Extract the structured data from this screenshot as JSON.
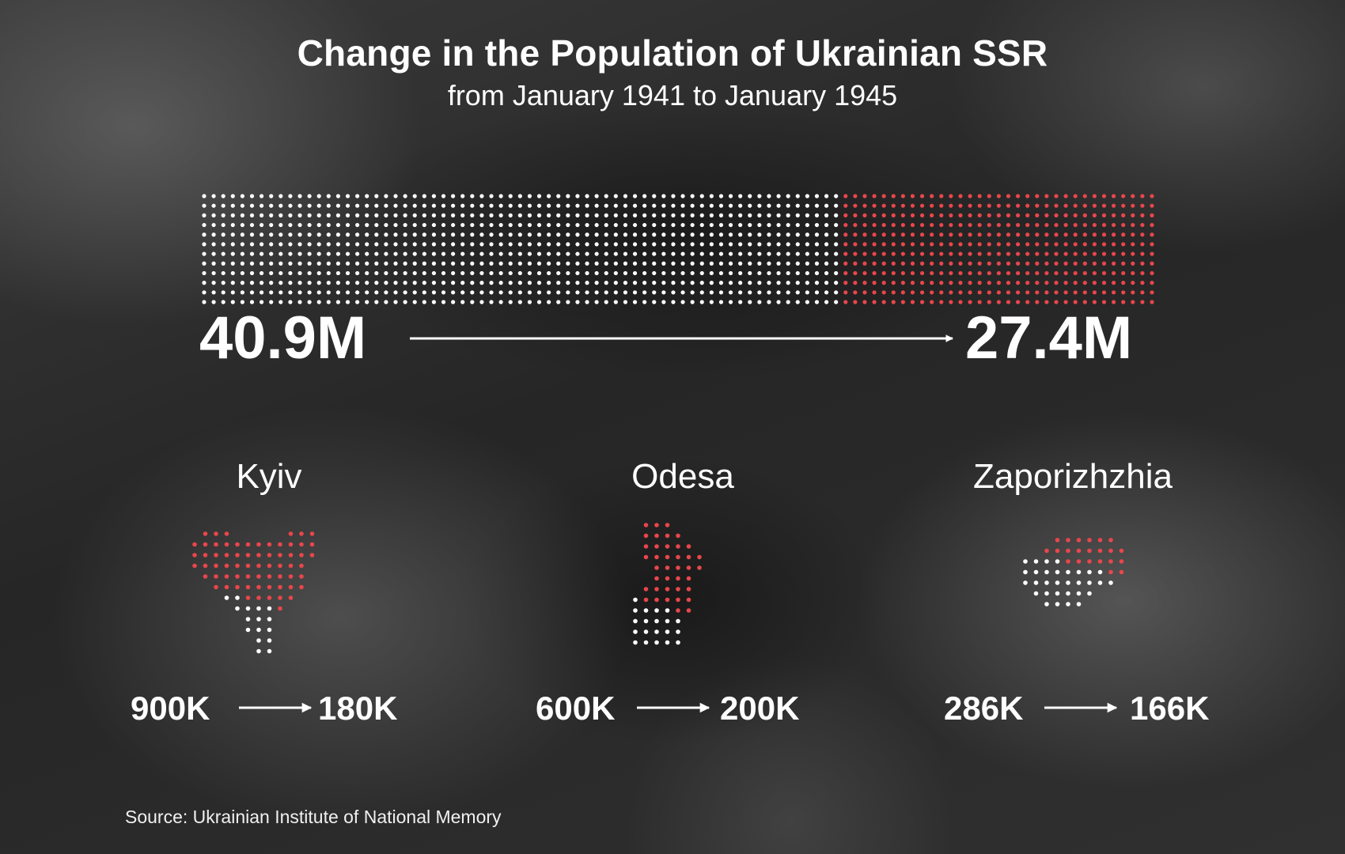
{
  "title": "Change in the Population of Ukrainian SSR",
  "subtitle": "from January 1941 to January 1945",
  "source": "Source: Ukrainian Institute of National Memory",
  "colors": {
    "remaining": "#ffffff",
    "lost": "#e8464b",
    "background": "#2a2a2a"
  },
  "chart_data": [
    {
      "type": "dot-matrix",
      "name": "Ukrainian SSR",
      "start_value": 40.9,
      "end_value": 27.4,
      "unit": "M",
      "start_label": "40.9M",
      "end_label": "27.4M"
    },
    {
      "type": "dot-matrix",
      "name": "Kyiv",
      "start_value": 900,
      "end_value": 180,
      "unit": "K",
      "start_label": "900K",
      "end_label": "180K"
    },
    {
      "type": "dot-matrix",
      "name": "Odesa",
      "start_value": 600,
      "end_value": 200,
      "unit": "K",
      "start_label": "600K",
      "end_label": "200K"
    },
    {
      "type": "dot-matrix",
      "name": "Zaporizhzhia",
      "start_value": 286,
      "end_value": 166,
      "unit": "K",
      "start_label": "286K",
      "end_label": "166K"
    }
  ]
}
